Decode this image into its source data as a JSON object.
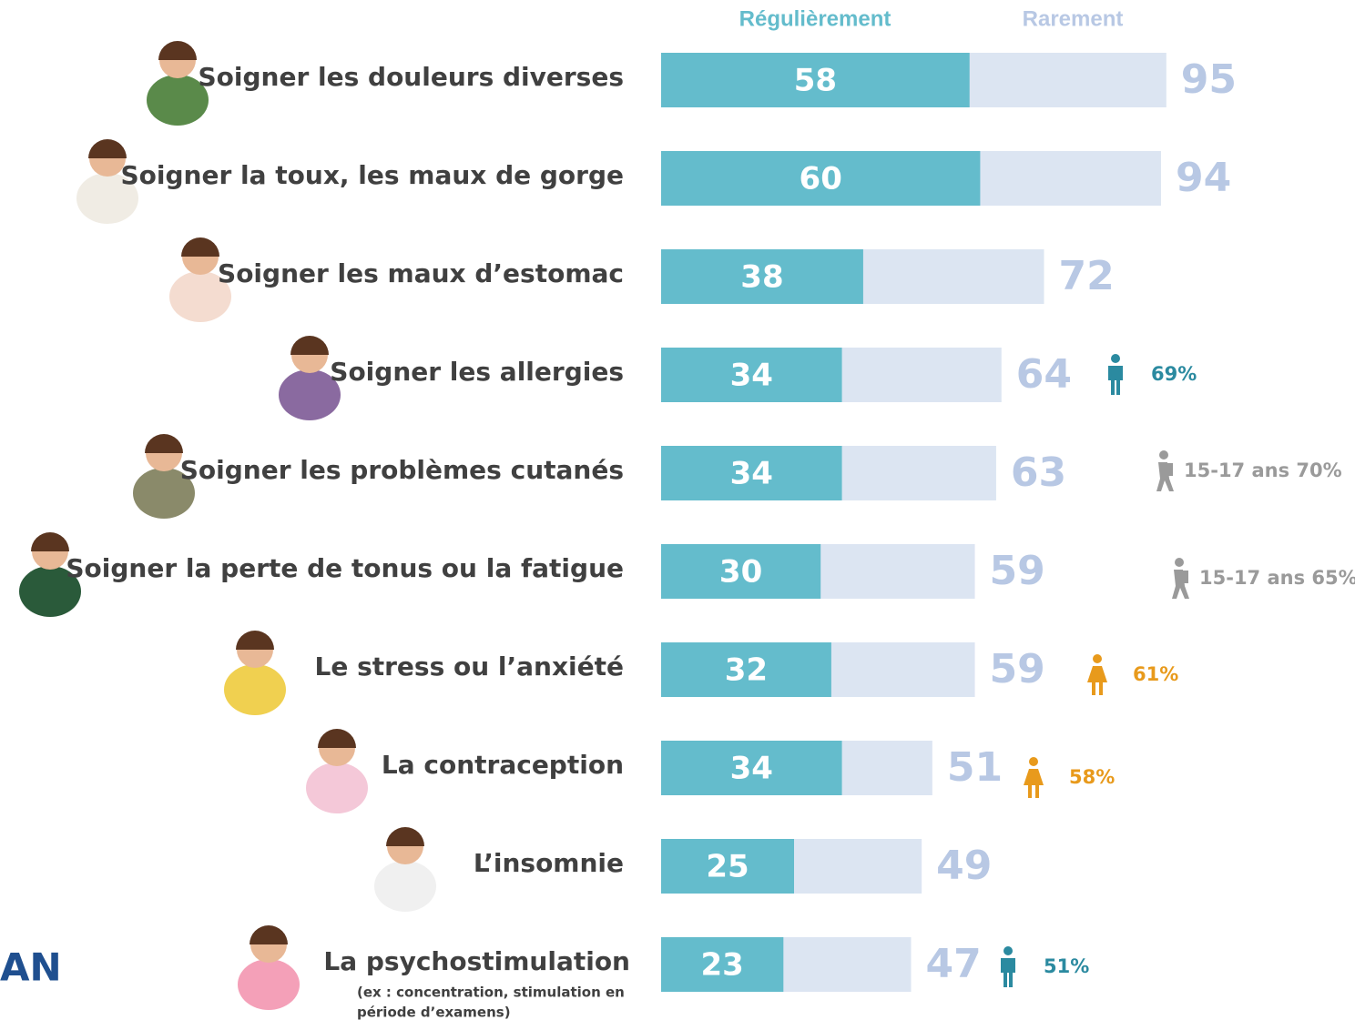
{
  "chart_data": {
    "type": "bar",
    "orientation": "horizontal",
    "stacked": false,
    "categories": [
      "Soigner les douleurs diverses",
      "Soigner la toux, les maux de gorge",
      "Soigner les maux d’estomac",
      "Soigner les allergies",
      "Soigner les problèmes cutanés",
      "Soigner la perte de tonus ou la fatigue",
      "Le stress ou l’anxiété",
      "La contraception",
      "L’insomnie",
      "La psychostimulation"
    ],
    "category_note": [
      "(ex : concentration, stimulation en",
      "période d’examens)"
    ],
    "series": [
      {
        "name": "Régulièrement",
        "color": "#64bccc",
        "label_color": "#ffffff",
        "values": [
          58,
          60,
          38,
          34,
          34,
          30,
          32,
          34,
          25,
          23
        ]
      },
      {
        "name": "Rarement",
        "color": "#dce5f2",
        "label_color": "#b8c8e4",
        "values": [
          95,
          94,
          72,
          64,
          63,
          59,
          59,
          51,
          49,
          47
        ]
      }
    ],
    "xlim": [
      0,
      100
    ],
    "annotations": [
      null,
      null,
      null,
      {
        "text": "69%",
        "color": "#2b8aa0",
        "icon": "man"
      },
      {
        "text": "15-17 ans 70%",
        "color": "#9a9a9a",
        "icon": "teen"
      },
      {
        "text": "15-17 ans 65%",
        "color": "#9a9a9a",
        "icon": "teen"
      },
      {
        "text": "61%",
        "color": "#e89a1c",
        "icon": "woman"
      },
      {
        "text": "58%",
        "color": "#e89a1c",
        "icon": "woman"
      },
      null,
      {
        "text": "51%",
        "color": "#2b8aa0",
        "icon": "man"
      }
    ],
    "logo_text": "AN"
  }
}
